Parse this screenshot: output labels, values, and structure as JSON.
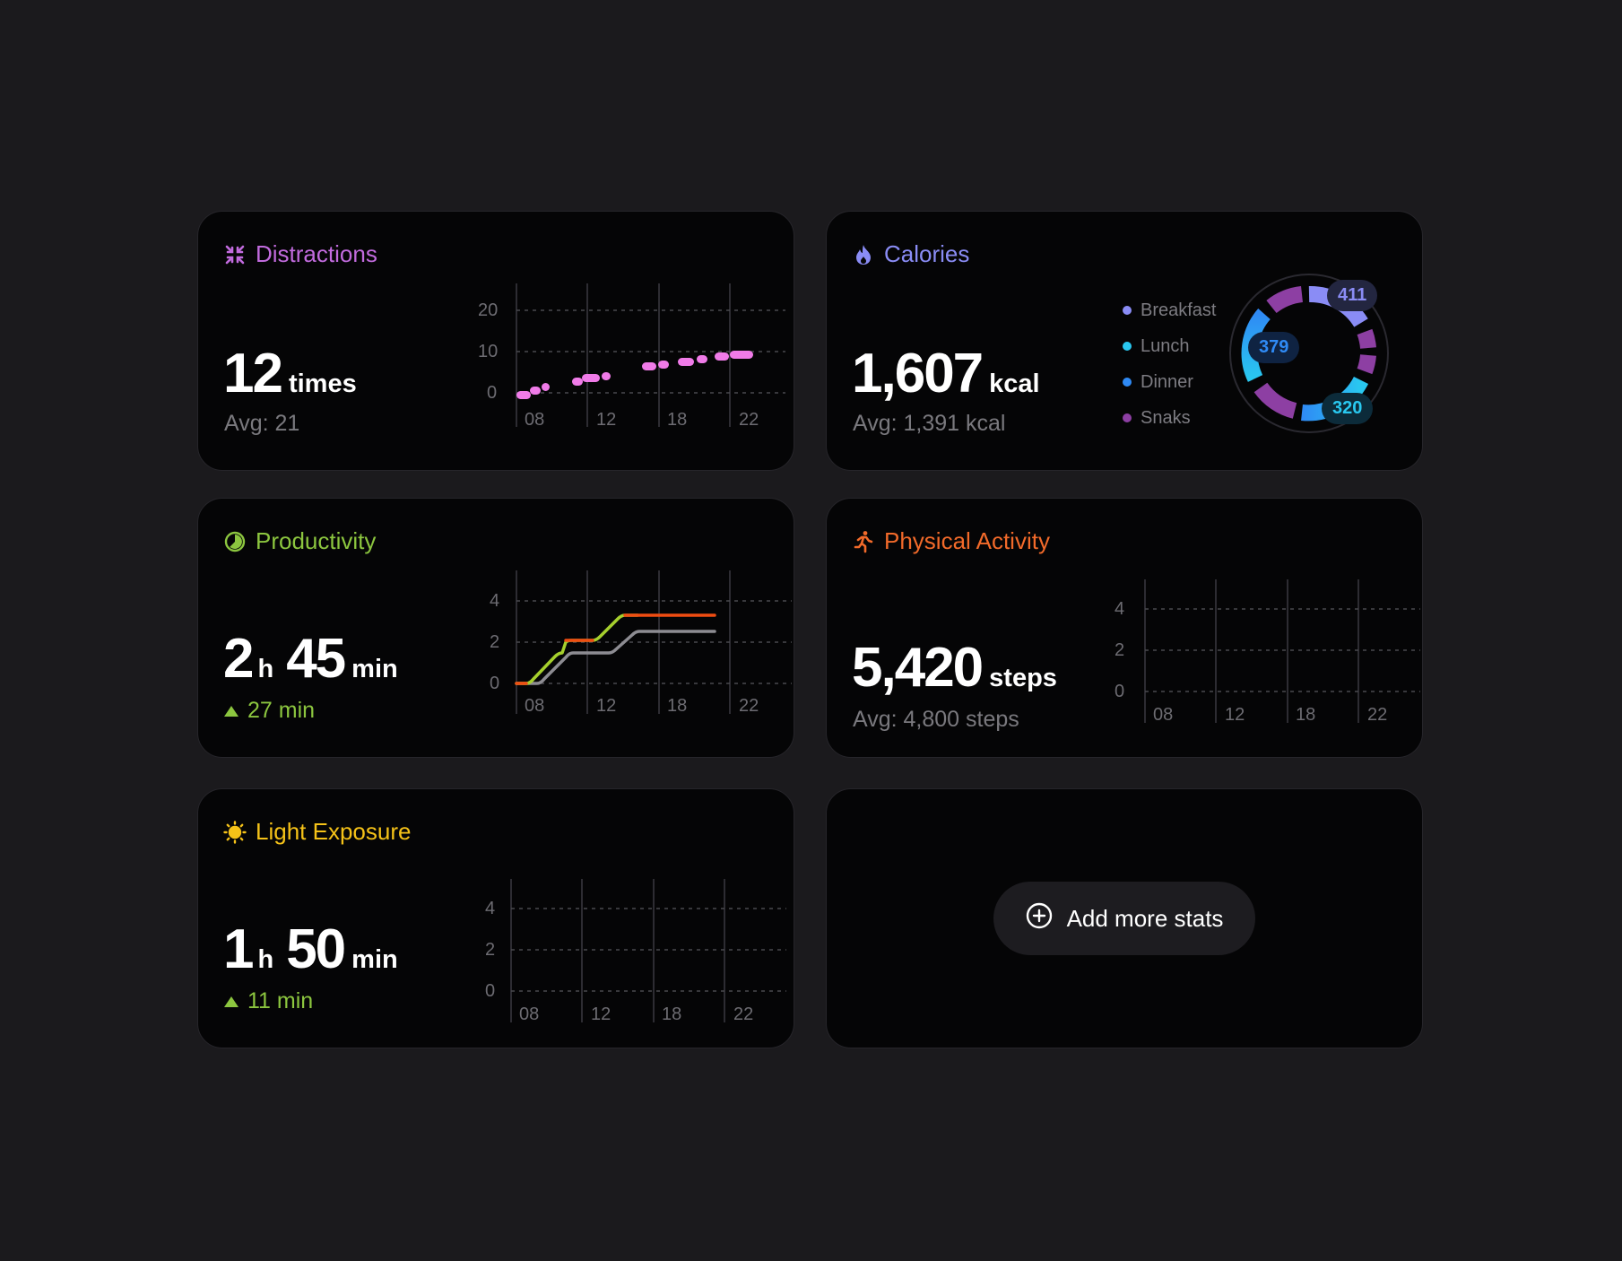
{
  "distractions": {
    "title": "Distractions",
    "icon": "compress-arrows-icon",
    "color": "#c26bde",
    "value": "12",
    "unit": "times",
    "avg": "Avg: 21",
    "chart_data": {
      "type": "scatter",
      "x_ticks": [
        "08",
        "12",
        "18",
        "22"
      ],
      "y_ticks": [
        "20",
        "10",
        "0"
      ],
      "ylim": [
        0,
        20
      ]
    }
  },
  "calories": {
    "title": "Calories",
    "icon": "flame-icon",
    "color": "#8a8cf5",
    "value": "1,607",
    "unit": "kcal",
    "avg": "Avg: 1,391 kcal",
    "legend": [
      {
        "label": "Breakfast",
        "color": "#8a8cf5"
      },
      {
        "label": "Lunch",
        "color": "#29c8f0"
      },
      {
        "label": "Dinner",
        "color": "#2f8af5"
      },
      {
        "label": "Snaks",
        "color": "#8d3fa3"
      }
    ],
    "chart_data": {
      "type": "pie",
      "labels": [
        "411",
        "379",
        "320"
      ]
    }
  },
  "productivity": {
    "title": "Productivity",
    "icon": "pie-progress-icon",
    "color": "#8cc63f",
    "hours": "2",
    "h_unit": "h",
    "minutes": "45",
    "min_unit": "min",
    "delta": "27 min",
    "chart_data": {
      "type": "line",
      "x_ticks": [
        "08",
        "12",
        "18",
        "22"
      ],
      "y_ticks": [
        "4",
        "2",
        "0"
      ],
      "ylim": [
        0,
        4
      ]
    }
  },
  "activity": {
    "title": "Physical Activity",
    "icon": "running-person-icon",
    "color": "#f26a2a",
    "value": "5,420",
    "unit": "steps",
    "avg": "Avg: 4,800 steps",
    "chart_data": {
      "type": "line",
      "x_ticks": [
        "08",
        "12",
        "18",
        "22"
      ],
      "y_ticks": [
        "4",
        "2",
        "0"
      ],
      "ylim": [
        0,
        4
      ]
    }
  },
  "light": {
    "title": "Light Exposure",
    "icon": "sun-icon",
    "color": "#f5c218",
    "hours": "1",
    "h_unit": "h",
    "minutes": "50",
    "min_unit": "min",
    "delta": "11 min",
    "chart_data": {
      "type": "line",
      "x_ticks": [
        "08",
        "12",
        "18",
        "22"
      ],
      "y_ticks": [
        "4",
        "2",
        "0"
      ],
      "ylim": [
        0,
        4
      ]
    }
  },
  "add": {
    "label": "Add more stats",
    "icon": "plus-circle-icon"
  }
}
